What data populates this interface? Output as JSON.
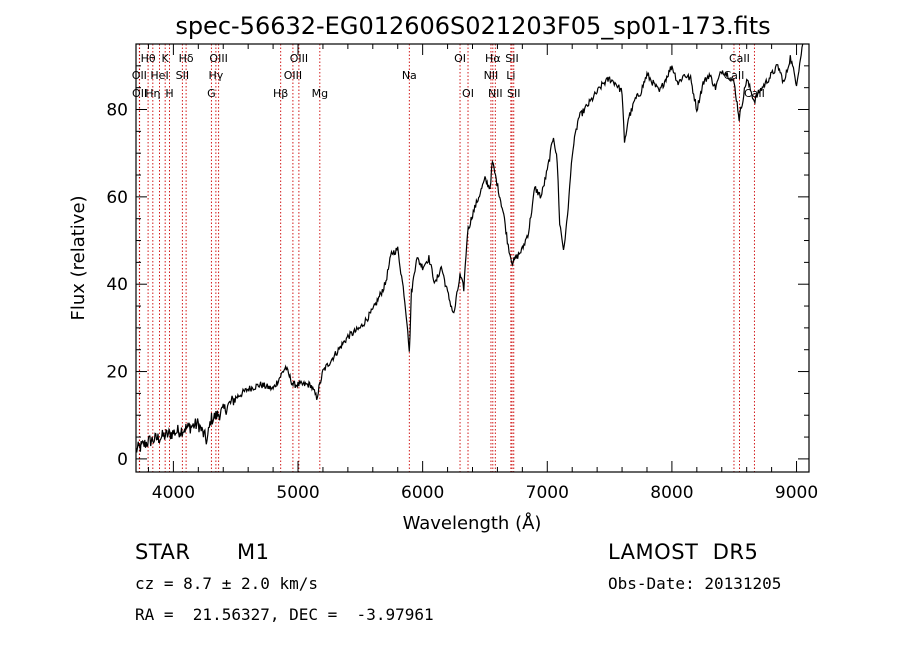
{
  "chart_data": {
    "type": "line",
    "title": "spec-56632-EG012606S021203F05_sp01-173.fits",
    "xlabel": "Wavelength (Å)",
    "ylabel": "Flux (relative)",
    "xlim": [
      3700,
      9100
    ],
    "ylim": [
      -3,
      95
    ],
    "xticks": [
      4000,
      5000,
      6000,
      7000,
      8000,
      9000
    ],
    "yticks": [
      0,
      20,
      40,
      60,
      80
    ],
    "grid": false,
    "line_color": "#000000",
    "marker_color": "#cc0000",
    "lines": [
      {
        "label": "Hθ",
        "x": 3797,
        "row": 1
      },
      {
        "label": "OII",
        "x": 3727,
        "row": 2
      },
      {
        "label": "OII",
        "x": 3729,
        "row": 3
      },
      {
        "label": "K",
        "x": 3934,
        "row": 1
      },
      {
        "label": "HeI",
        "x": 3889,
        "row": 2
      },
      {
        "label": "Hη",
        "x": 3835,
        "row": 3
      },
      {
        "label": "Hδ",
        "x": 4102,
        "row": 1
      },
      {
        "label": "SII",
        "x": 4072,
        "row": 2
      },
      {
        "label": "H",
        "x": 3969,
        "row": 3
      },
      {
        "label": "OIII",
        "x": 4363,
        "row": 1
      },
      {
        "label": "Hγ",
        "x": 4341,
        "row": 2
      },
      {
        "label": "G",
        "x": 4305,
        "row": 3
      },
      {
        "label": "OIII",
        "x": 5007,
        "row": 1
      },
      {
        "label": "OIII",
        "x": 4959,
        "row": 2
      },
      {
        "label": "Hβ",
        "x": 4861,
        "row": 3
      },
      {
        "label": "Mg",
        "x": 5175,
        "row": 3
      },
      {
        "label": "Na",
        "x": 5893,
        "row": 2
      },
      {
        "label": "OI",
        "x": 6300,
        "row": 1
      },
      {
        "label": "OI",
        "x": 6364,
        "row": 3
      },
      {
        "label": "Hα",
        "x": 6563,
        "row": 1
      },
      {
        "label": "NII",
        "x": 6548,
        "row": 2
      },
      {
        "label": "NII",
        "x": 6583,
        "row": 3
      },
      {
        "label": "SII",
        "x": 6717,
        "row": 1
      },
      {
        "label": "Li",
        "x": 6708,
        "row": 2
      },
      {
        "label": "SII",
        "x": 6731,
        "row": 3
      },
      {
        "label": "CaII",
        "x": 8542,
        "row": 1
      },
      {
        "label": "CaII",
        "x": 8498,
        "row": 2
      },
      {
        "label": "CaII",
        "x": 8662,
        "row": 3
      }
    ],
    "spectrum_anchors": {
      "x": [
        3700,
        3800,
        3900,
        4000,
        4100,
        4200,
        4270,
        4300,
        4400,
        4500,
        4600,
        4700,
        4800,
        4860,
        4900,
        4960,
        5000,
        5100,
        5150,
        5200,
        5300,
        5400,
        5500,
        5600,
        5700,
        5750,
        5800,
        5850,
        5880,
        5893,
        5910,
        5950,
        6000,
        6050,
        6100,
        6150,
        6200,
        6250,
        6300,
        6330,
        6360,
        6400,
        6450,
        6500,
        6540,
        6560,
        6590,
        6620,
        6650,
        6680,
        6700,
        6720,
        6750,
        6800,
        6850,
        6900,
        6950,
        7000,
        7050,
        7080,
        7100,
        7130,
        7150,
        7180,
        7200,
        7250,
        7300,
        7350,
        7400,
        7450,
        7500,
        7550,
        7600,
        7620,
        7650,
        7680,
        7700,
        7750,
        7800,
        7850,
        7900,
        8000,
        8050,
        8100,
        8150,
        8200,
        8250,
        8300,
        8350,
        8400,
        8450,
        8500,
        8540,
        8600,
        8660,
        8700,
        8750,
        8800,
        8850,
        8900,
        8950,
        9000,
        9050
      ],
      "y": [
        2,
        4,
        5,
        6,
        7,
        8,
        4,
        9,
        11,
        14,
        16,
        17,
        16,
        19,
        21,
        17,
        17,
        17,
        14,
        20,
        24,
        28,
        30,
        34,
        40,
        47,
        48,
        38,
        30,
        24,
        38,
        46,
        44,
        46,
        40,
        44,
        38,
        33,
        42,
        39,
        52,
        56,
        60,
        64,
        62,
        68,
        64,
        60,
        56,
        50,
        47,
        45,
        46,
        48,
        52,
        62,
        60,
        66,
        74,
        68,
        54,
        48,
        52,
        62,
        70,
        78,
        80,
        82,
        84,
        86,
        87,
        86,
        84,
        72,
        78,
        80,
        82,
        84,
        88,
        86,
        84,
        90,
        86,
        88,
        87,
        80,
        86,
        88,
        85,
        89,
        88,
        86,
        78,
        87,
        82,
        84,
        86,
        88,
        90,
        86,
        92,
        86,
        95
      ]
    }
  },
  "info": {
    "object_type": "STAR",
    "subclass": "M1",
    "survey": "LAMOST  DR5",
    "redshift": "cz = 8.7 ± 2.0 km/s",
    "obs_date": "Obs-Date: 20131205",
    "coords": "RA =  21.56327, DEC =  -3.97961"
  }
}
